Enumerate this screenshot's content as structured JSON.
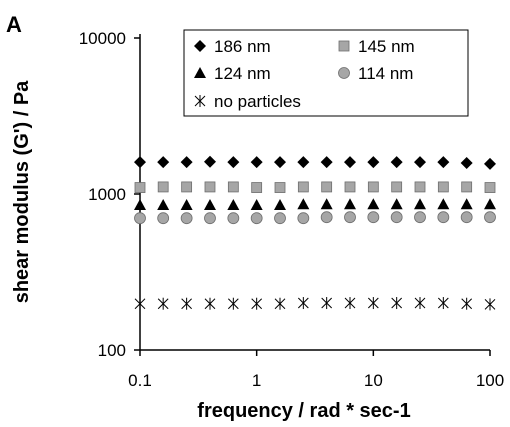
{
  "panel_label": "A",
  "chart_data": {
    "type": "scatter",
    "title": "",
    "xlabel": "frequency / rad * sec-1",
    "ylabel": "shear modulus (G') / Pa",
    "xscale": "log",
    "yscale": "log",
    "xlim": [
      0.1,
      100
    ],
    "ylim": [
      100,
      10000
    ],
    "xticks": [
      0.1,
      1,
      10,
      100
    ],
    "xtick_labels": [
      "0.1",
      "1",
      "10",
      "100"
    ],
    "yticks": [
      100,
      1000,
      10000
    ],
    "ytick_labels": [
      "100",
      "1000",
      "10000"
    ],
    "grid": false,
    "legend_position": "top",
    "x": [
      0.1,
      0.158,
      0.251,
      0.398,
      0.631,
      1,
      1.585,
      2.512,
      3.981,
      6.31,
      10,
      15.85,
      25.12,
      39.81,
      63.1,
      100
    ],
    "series": [
      {
        "name": "186 nm",
        "marker": "diamond",
        "color": "#000000",
        "values": [
          1600,
          1600,
          1600,
          1610,
          1600,
          1600,
          1600,
          1600,
          1600,
          1600,
          1600,
          1600,
          1600,
          1600,
          1580,
          1560
        ]
      },
      {
        "name": "145 nm",
        "marker": "square",
        "color": "#a6a6a6",
        "values": [
          1100,
          1110,
          1110,
          1110,
          1110,
          1100,
          1100,
          1110,
          1110,
          1110,
          1110,
          1110,
          1110,
          1110,
          1110,
          1100
        ]
      },
      {
        "name": "124 nm",
        "marker": "triangle",
        "color": "#000000",
        "values": [
          850,
          850,
          850,
          850,
          850,
          850,
          850,
          860,
          860,
          860,
          860,
          860,
          860,
          860,
          860,
          860
        ]
      },
      {
        "name": "114 nm",
        "marker": "circle",
        "color": "#a6a6a6",
        "values": [
          700,
          700,
          700,
          700,
          700,
          700,
          700,
          700,
          710,
          710,
          710,
          710,
          710,
          710,
          710,
          710
        ]
      },
      {
        "name": "no particles",
        "marker": "asterisk",
        "color": "#000000",
        "values": [
          198,
          198,
          198,
          198,
          198,
          198,
          198,
          200,
          200,
          200,
          200,
          200,
          200,
          200,
          198,
          196
        ]
      }
    ]
  }
}
